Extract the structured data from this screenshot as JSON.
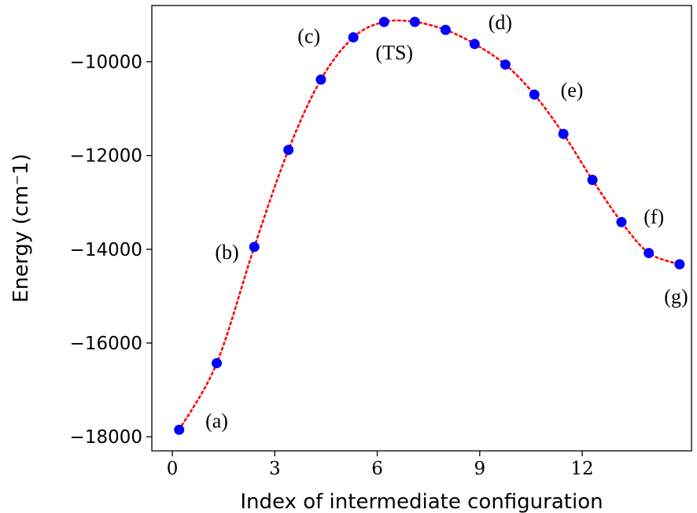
{
  "chart_data": {
    "type": "line",
    "xlabel": "Index of intermediate configuration",
    "ylabel": "Energy (cm⁻1)",
    "xlim": [
      -0.6,
      15.2
    ],
    "ylim": [
      -18300,
      -8800
    ],
    "xticks": [
      0,
      3,
      6,
      9,
      12
    ],
    "xtick_labels": [
      "0",
      "3",
      "6",
      "9",
      "12"
    ],
    "yticks": [
      -18000,
      -16000,
      -14000,
      -12000,
      -10000
    ],
    "ytick_labels": [
      "−18000",
      "−16000",
      "−14000",
      "−12000",
      "−10000"
    ],
    "grid": false,
    "legend": "none",
    "series": [
      {
        "marker_color": "#0000ff",
        "line_color": "#ff0000",
        "line_style": "dotted",
        "points": [
          {
            "x": 0.2,
            "y": -17850
          },
          {
            "x": 1.3,
            "y": -16430
          },
          {
            "x": 2.4,
            "y": -13950
          },
          {
            "x": 3.4,
            "y": -11880
          },
          {
            "x": 4.35,
            "y": -10380
          },
          {
            "x": 5.3,
            "y": -9480
          },
          {
            "x": 6.2,
            "y": -9150
          },
          {
            "x": 7.1,
            "y": -9150
          },
          {
            "x": 8.0,
            "y": -9320
          },
          {
            "x": 8.85,
            "y": -9620
          },
          {
            "x": 9.75,
            "y": -10060
          },
          {
            "x": 10.6,
            "y": -10700
          },
          {
            "x": 11.45,
            "y": -11540
          },
          {
            "x": 12.3,
            "y": -12520
          },
          {
            "x": 13.15,
            "y": -13420
          },
          {
            "x": 13.95,
            "y": -14080
          },
          {
            "x": 14.85,
            "y": -14320
          }
        ]
      }
    ],
    "annotations": [
      {
        "text": "(a)",
        "x": 1.3,
        "y": -17650
      },
      {
        "text": "(b)",
        "x": 1.6,
        "y": -14050
      },
      {
        "text": "(c)",
        "x": 4.0,
        "y": -9450
      },
      {
        "text": "(TS)",
        "x": 6.5,
        "y": -9800
      },
      {
        "text": "(d)",
        "x": 9.6,
        "y": -9150
      },
      {
        "text": "(e)",
        "x": 11.7,
        "y": -10600
      },
      {
        "text": "(f)",
        "x": 14.1,
        "y": -13300
      },
      {
        "text": "(g)",
        "x": 14.75,
        "y": -15000
      }
    ]
  }
}
